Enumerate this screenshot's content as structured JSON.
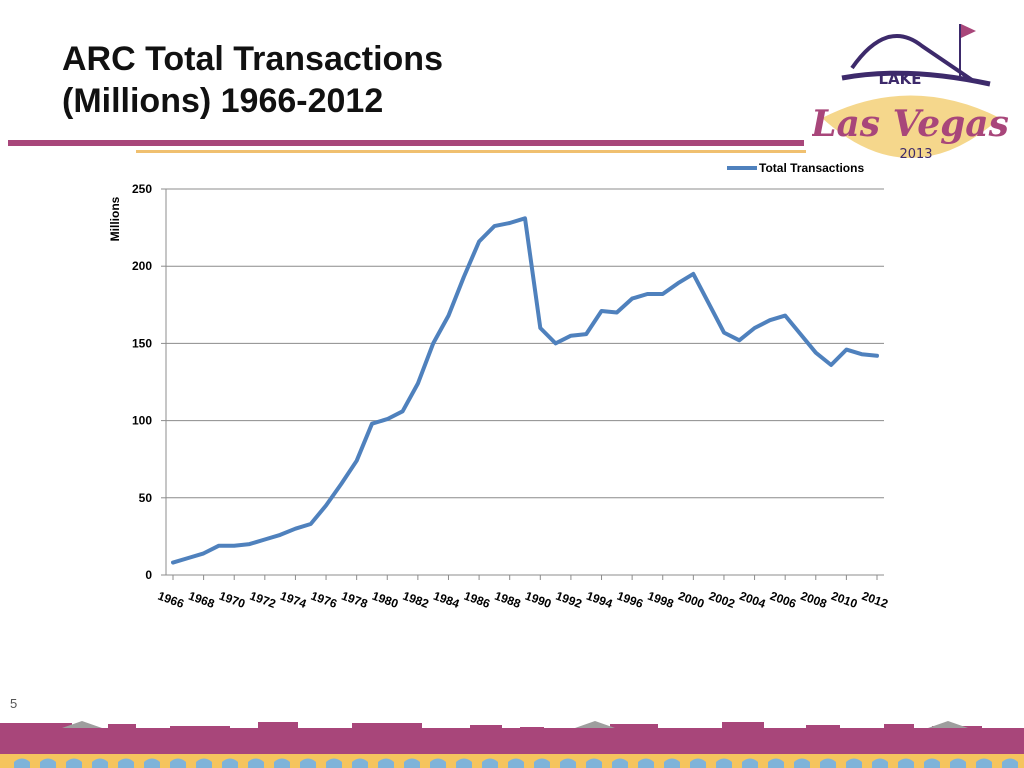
{
  "slide": {
    "title_line1": "ARC Total Transactions",
    "title_line2": "(Millions) 1966-2012",
    "page_number": "5"
  },
  "logo": {
    "text_top": "LAKE",
    "text_main": "Las Vegas",
    "text_year": "2013"
  },
  "colors": {
    "accent": "#a8467a",
    "gold": "#f0c070",
    "logo_purple": "#3d2a6b",
    "series": "#4f81bd"
  },
  "chart_data": {
    "type": "line",
    "title": "",
    "xlabel": "",
    "ylabel": "Millions",
    "ylim": [
      0,
      250
    ],
    "yticks": [
      0,
      50,
      100,
      150,
      200,
      250
    ],
    "grid": true,
    "legend_position": "top-right",
    "x_tick_labels": [
      "1966",
      "1968",
      "1970",
      "1972",
      "1974",
      "1976",
      "1978",
      "1980",
      "1982",
      "1984",
      "1986",
      "1988",
      "1990",
      "1992",
      "1994",
      "1996",
      "1998",
      "2000",
      "2002",
      "2004",
      "2006",
      "2008",
      "2010",
      "2012"
    ],
    "x": [
      1966,
      1967,
      1968,
      1969,
      1970,
      1971,
      1972,
      1973,
      1974,
      1975,
      1976,
      1977,
      1978,
      1979,
      1980,
      1981,
      1982,
      1983,
      1984,
      1985,
      1986,
      1987,
      1988,
      1989,
      1990,
      1991,
      1992,
      1993,
      1994,
      1995,
      1996,
      1997,
      1998,
      1999,
      2000,
      2001,
      2002,
      2003,
      2004,
      2005,
      2006,
      2007,
      2008,
      2009,
      2010,
      2011,
      2012
    ],
    "series": [
      {
        "name": "Total Transactions",
        "values": [
          8,
          11,
          14,
          19,
          19,
          20,
          23,
          26,
          30,
          33,
          45,
          59,
          74,
          98,
          101,
          106,
          124,
          150,
          168,
          193,
          216,
          226,
          228,
          231,
          160,
          150,
          155,
          156,
          171,
          170,
          179,
          182,
          182,
          189,
          195,
          176,
          157,
          152,
          160,
          165,
          168,
          156,
          144,
          136,
          146,
          143,
          142
        ]
      }
    ]
  }
}
